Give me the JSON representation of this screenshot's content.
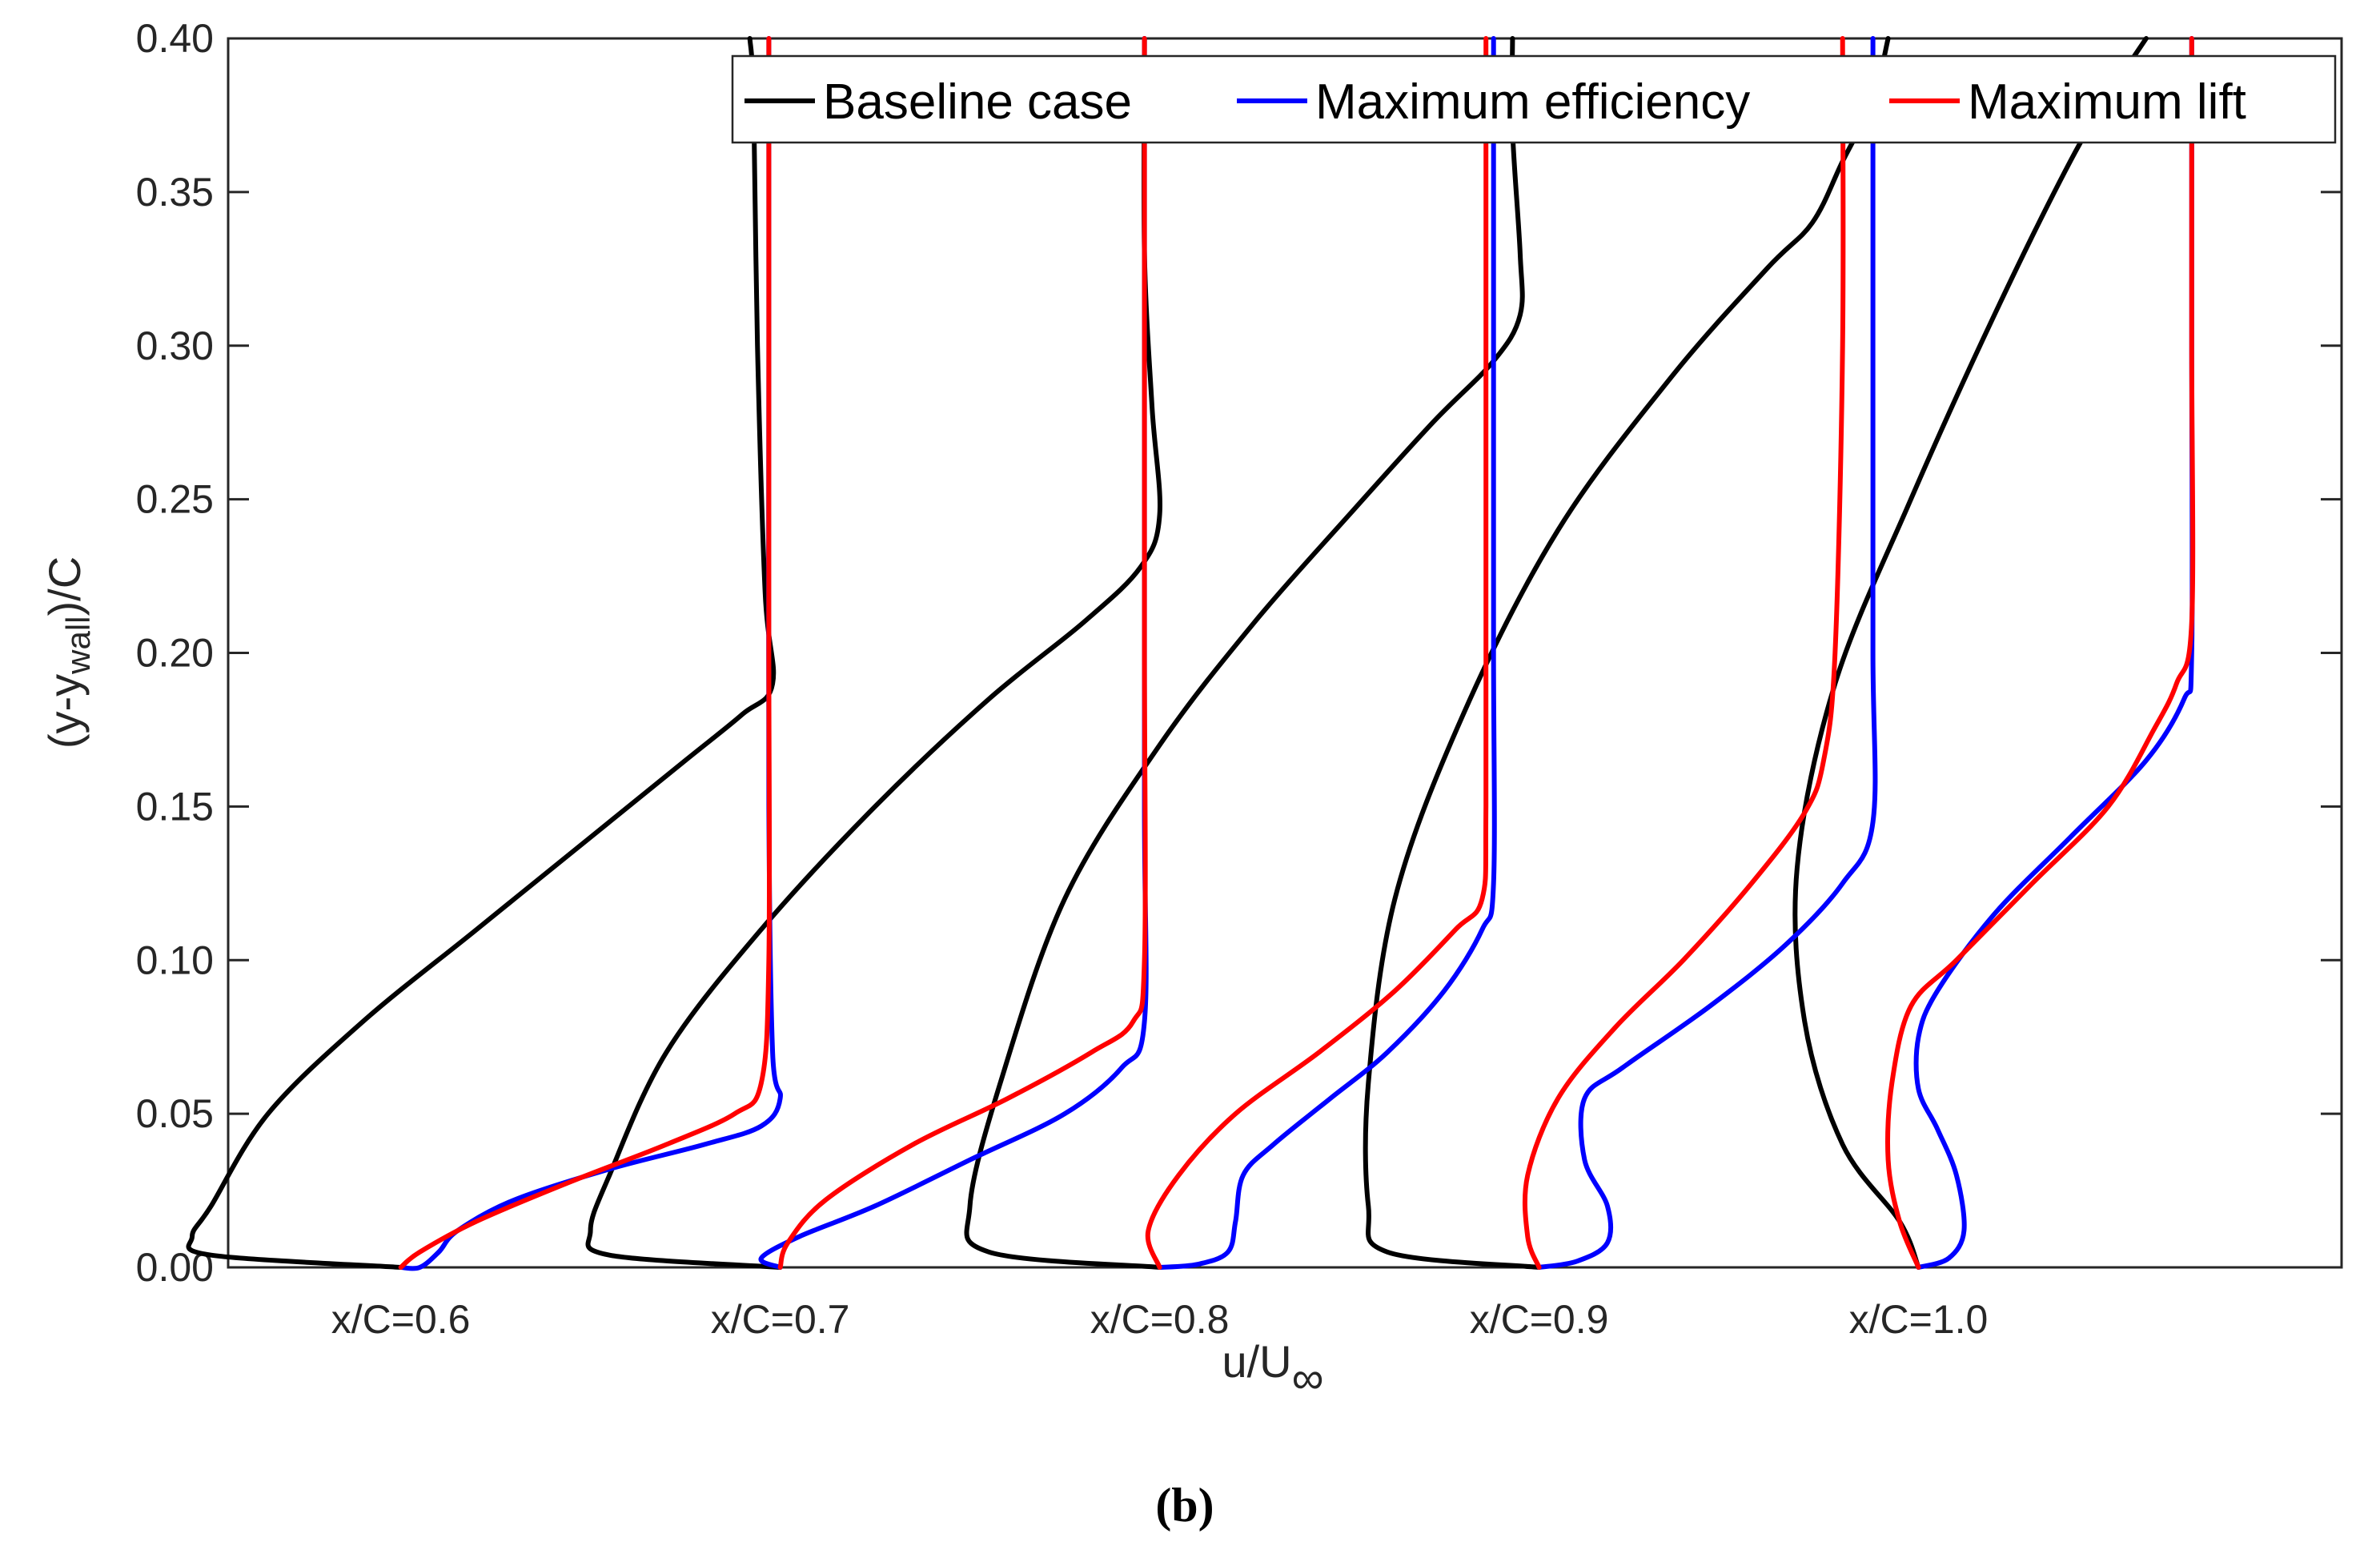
{
  "chart_data": {
    "type": "line",
    "title": "",
    "xlabel": "u/U",
    "xlabel_subscript": "∞",
    "ylabel": "(y-y",
    "ylabel_subscript": "wall",
    "ylabel_suffix": ")/C",
    "ylim": [
      0.0,
      0.4
    ],
    "yticks": [
      "0.00",
      "0.05",
      "0.10",
      "0.15",
      "0.20",
      "0.25",
      "0.30",
      "0.35",
      "0.40"
    ],
    "grid": false,
    "legend_position": "top-right",
    "stations": [
      {
        "label": "x/C=0.6",
        "x_position": 0.6
      },
      {
        "label": "x/C=0.7",
        "x_position": 0.7
      },
      {
        "label": "x/C=0.8",
        "x_position": 0.8
      },
      {
        "label": "x/C=0.9",
        "x_position": 0.9
      },
      {
        "label": "x/C=1.0",
        "x_position": 1.0
      }
    ],
    "series": [
      {
        "name": "Baseline case",
        "color": "#000000",
        "profiles": [
          [
            [
              0.0,
              0.0
            ],
            [
              -0.5,
              0.004
            ],
            [
              -0.55,
              0.01
            ],
            [
              -0.5,
              0.02
            ],
            [
              -0.35,
              0.05
            ],
            [
              -0.1,
              0.08
            ],
            [
              0.2,
              0.11
            ],
            [
              0.5,
              0.14
            ],
            [
              0.75,
              0.165
            ],
            [
              0.9,
              0.18
            ],
            [
              0.98,
              0.19
            ],
            [
              0.96,
              0.22
            ],
            [
              0.94,
              0.3
            ],
            [
              0.93,
              0.38
            ],
            [
              0.92,
              0.4
            ]
          ],
          [
            [
              0.0,
              0.0
            ],
            [
              -0.45,
              0.004
            ],
            [
              -0.5,
              0.012
            ],
            [
              -0.45,
              0.03
            ],
            [
              -0.3,
              0.07
            ],
            [
              -0.05,
              0.11
            ],
            [
              0.25,
              0.15
            ],
            [
              0.55,
              0.185
            ],
            [
              0.8,
              0.21
            ],
            [
              0.95,
              0.228
            ],
            [
              1.0,
              0.245
            ],
            [
              0.98,
              0.28
            ],
            [
              0.96,
              0.33
            ],
            [
              0.96,
              0.4
            ]
          ],
          [
            [
              0.0,
              0.0
            ],
            [
              -0.45,
              0.005
            ],
            [
              -0.5,
              0.02
            ],
            [
              -0.42,
              0.06
            ],
            [
              -0.25,
              0.12
            ],
            [
              0.0,
              0.17
            ],
            [
              0.25,
              0.21
            ],
            [
              0.5,
              0.245
            ],
            [
              0.72,
              0.275
            ],
            [
              0.88,
              0.295
            ],
            [
              0.95,
              0.31
            ],
            [
              0.95,
              0.33
            ],
            [
              0.93,
              0.37
            ],
            [
              0.93,
              0.4
            ]
          ],
          [
            [
              0.0,
              0.0
            ],
            [
              -0.4,
              0.005
            ],
            [
              -0.45,
              0.02
            ],
            [
              -0.45,
              0.06
            ],
            [
              -0.38,
              0.12
            ],
            [
              -0.2,
              0.18
            ],
            [
              0.05,
              0.24
            ],
            [
              0.35,
              0.29
            ],
            [
              0.6,
              0.325
            ],
            [
              0.72,
              0.34
            ],
            [
              0.8,
              0.36
            ],
            [
              0.88,
              0.38
            ],
            [
              0.92,
              0.4
            ]
          ],
          [
            [
              0.0,
              0.0
            ],
            [
              -0.05,
              0.015
            ],
            [
              -0.2,
              0.04
            ],
            [
              -0.3,
              0.08
            ],
            [
              -0.32,
              0.13
            ],
            [
              -0.22,
              0.19
            ],
            [
              -0.02,
              0.25
            ],
            [
              0.2,
              0.31
            ],
            [
              0.4,
              0.36
            ],
            [
              0.52,
              0.385
            ],
            [
              0.6,
              0.4
            ]
          ]
        ]
      },
      {
        "name": "Maximum efficiency",
        "color": "#0000ff",
        "profiles": [
          [
            [
              0.0,
              0.0
            ],
            [
              0.05,
              0.0
            ],
            [
              0.1,
              0.005
            ],
            [
              0.15,
              0.012
            ],
            [
              0.3,
              0.022
            ],
            [
              0.55,
              0.032
            ],
            [
              0.8,
              0.04
            ],
            [
              0.95,
              0.046
            ],
            [
              1.0,
              0.055
            ],
            [
              0.98,
              0.07
            ],
            [
              0.97,
              0.15
            ],
            [
              0.97,
              0.3
            ],
            [
              0.97,
              0.4
            ]
          ],
          [
            [
              0.0,
              0.0
            ],
            [
              -0.05,
              0.003
            ],
            [
              0.05,
              0.01
            ],
            [
              0.25,
              0.02
            ],
            [
              0.5,
              0.035
            ],
            [
              0.75,
              0.05
            ],
            [
              0.9,
              0.065
            ],
            [
              0.96,
              0.08
            ],
            [
              0.96,
              0.15
            ],
            [
              0.96,
              0.3
            ],
            [
              0.96,
              0.4
            ]
          ],
          [
            [
              0.0,
              0.0
            ],
            [
              0.1,
              0.001
            ],
            [
              0.18,
              0.005
            ],
            [
              0.2,
              0.015
            ],
            [
              0.22,
              0.03
            ],
            [
              0.3,
              0.04
            ],
            [
              0.45,
              0.055
            ],
            [
              0.6,
              0.07
            ],
            [
              0.75,
              0.09
            ],
            [
              0.85,
              0.11
            ],
            [
              0.88,
              0.125
            ],
            [
              0.88,
              0.2
            ],
            [
              0.88,
              0.3
            ],
            [
              0.88,
              0.4
            ]
          ],
          [
            [
              0.0,
              0.0
            ],
            [
              0.1,
              0.002
            ],
            [
              0.18,
              0.008
            ],
            [
              0.18,
              0.02
            ],
            [
              0.12,
              0.035
            ],
            [
              0.12,
              0.055
            ],
            [
              0.22,
              0.065
            ],
            [
              0.45,
              0.085
            ],
            [
              0.65,
              0.105
            ],
            [
              0.8,
              0.125
            ],
            [
              0.88,
              0.145
            ],
            [
              0.88,
              0.2
            ],
            [
              0.88,
              0.3
            ],
            [
              0.88,
              0.4
            ]
          ],
          [
            [
              0.0,
              0.0
            ],
            [
              0.08,
              0.003
            ],
            [
              0.12,
              0.012
            ],
            [
              0.1,
              0.03
            ],
            [
              0.05,
              0.045
            ],
            [
              0.0,
              0.058
            ],
            [
              0.0,
              0.075
            ],
            [
              0.05,
              0.09
            ],
            [
              0.2,
              0.115
            ],
            [
              0.4,
              0.14
            ],
            [
              0.6,
              0.165
            ],
            [
              0.7,
              0.185
            ],
            [
              0.72,
              0.2
            ],
            [
              0.72,
              0.3
            ],
            [
              0.72,
              0.4
            ]
          ]
        ]
      },
      {
        "name": "Maximum lift",
        "color": "#ff0000",
        "profiles": [
          [
            [
              0.0,
              0.0
            ],
            [
              0.05,
              0.005
            ],
            [
              0.2,
              0.015
            ],
            [
              0.45,
              0.028
            ],
            [
              0.7,
              0.04
            ],
            [
              0.88,
              0.05
            ],
            [
              0.95,
              0.06
            ],
            [
              0.97,
              0.1
            ],
            [
              0.97,
              0.2
            ],
            [
              0.97,
              0.3
            ],
            [
              0.97,
              0.4
            ]
          ],
          [
            [
              0.0,
              0.0
            ],
            [
              0.02,
              0.008
            ],
            [
              0.12,
              0.022
            ],
            [
              0.35,
              0.04
            ],
            [
              0.6,
              0.055
            ],
            [
              0.82,
              0.07
            ],
            [
              0.93,
              0.08
            ],
            [
              0.96,
              0.1
            ],
            [
              0.96,
              0.2
            ],
            [
              0.96,
              0.3
            ],
            [
              0.96,
              0.4
            ]
          ],
          [
            [
              0.0,
              0.0
            ],
            [
              -0.03,
              0.012
            ],
            [
              0.05,
              0.03
            ],
            [
              0.2,
              0.05
            ],
            [
              0.42,
              0.07
            ],
            [
              0.62,
              0.09
            ],
            [
              0.78,
              0.11
            ],
            [
              0.85,
              0.12
            ],
            [
              0.86,
              0.15
            ],
            [
              0.86,
              0.25
            ],
            [
              0.86,
              0.4
            ]
          ],
          [
            [
              0.0,
              0.0
            ],
            [
              -0.03,
              0.01
            ],
            [
              -0.03,
              0.03
            ],
            [
              0.05,
              0.055
            ],
            [
              0.2,
              0.078
            ],
            [
              0.38,
              0.1
            ],
            [
              0.56,
              0.125
            ],
            [
              0.7,
              0.148
            ],
            [
              0.75,
              0.165
            ],
            [
              0.78,
              0.2
            ],
            [
              0.8,
              0.3
            ],
            [
              0.8,
              0.4
            ]
          ],
          [
            [
              0.0,
              0.0
            ],
            [
              -0.05,
              0.015
            ],
            [
              -0.08,
              0.035
            ],
            [
              -0.07,
              0.06
            ],
            [
              -0.02,
              0.085
            ],
            [
              0.1,
              0.1
            ],
            [
              0.3,
              0.125
            ],
            [
              0.5,
              0.15
            ],
            [
              0.62,
              0.175
            ],
            [
              0.68,
              0.19
            ],
            [
              0.72,
              0.21
            ],
            [
              0.72,
              0.3
            ],
            [
              0.72,
              0.4
            ]
          ]
        ]
      }
    ]
  },
  "caption": "(b)"
}
